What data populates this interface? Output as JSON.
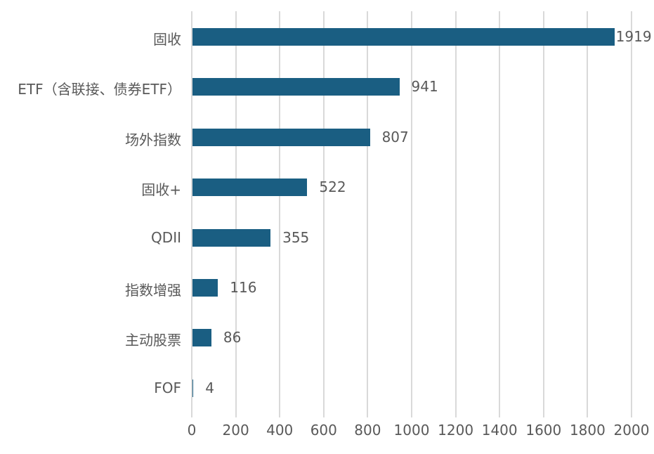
{
  "chart_data": {
    "type": "bar",
    "orientation": "horizontal",
    "title": "",
    "xlabel": "",
    "ylabel": "",
    "categories": [
      "固收",
      "ETF（含联接、债券ETF）",
      "场外指数",
      "固收+",
      "QDII",
      "指数增强",
      "主动股票",
      "FOF"
    ],
    "values": [
      1919,
      941,
      807,
      522,
      355,
      116,
      86,
      4
    ],
    "xlim": [
      0,
      2000
    ],
    "xticks": [
      "0",
      "200",
      "400",
      "600",
      "800",
      "1000",
      "1200",
      "1400",
      "1600",
      "1800",
      "2000"
    ],
    "grid": true,
    "legend": null,
    "bar_color": "#1a5e82",
    "data_labels": true
  }
}
